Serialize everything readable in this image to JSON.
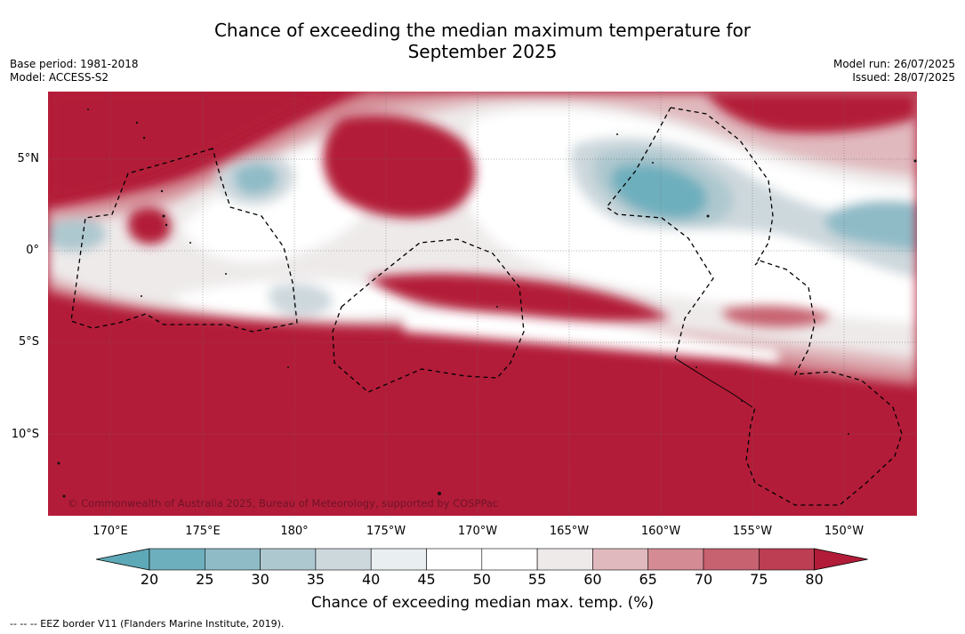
{
  "title_line1": "Chance of exceeding the median maximum temperature for",
  "title_line2": "September 2025",
  "meta_left": [
    "Base period: 1981-2018",
    "Model: ACCESS-S2"
  ],
  "meta_right": [
    "Model run: 26/07/2025",
    "Issued: 28/07/2025"
  ],
  "lat_labels": [
    "5°N",
    "0°",
    "5°S",
    "10°S"
  ],
  "lon_labels": [
    "170°E",
    "175°E",
    "180°",
    "175°W",
    "170°W",
    "165°W",
    "160°W",
    "155°W",
    "150°W"
  ],
  "copyright": "© Commonwealth of Australia 2025, Bureau of Meteorology, supported by COSPPac",
  "colorbar": {
    "ticks": [
      "20",
      "25",
      "30",
      "35",
      "40",
      "45",
      "50",
      "55",
      "60",
      "65",
      "70",
      "75",
      "80"
    ],
    "colors": [
      "#5ea9b7",
      "#6eafbd",
      "#8fbbc7",
      "#aec8cf",
      "#cdd8dd",
      "#e9eff1",
      "#ffffff",
      "#ffffff",
      "#eeeaea",
      "#e0b9be",
      "#d48b94",
      "#c76270",
      "#bd3d52",
      "#b31c39"
    ],
    "label": "Chance of exceeding median max. temp. (%)"
  },
  "footnote": "--  --  -- EEZ border V11 (Flanders Marine Institute, 2019)."
}
